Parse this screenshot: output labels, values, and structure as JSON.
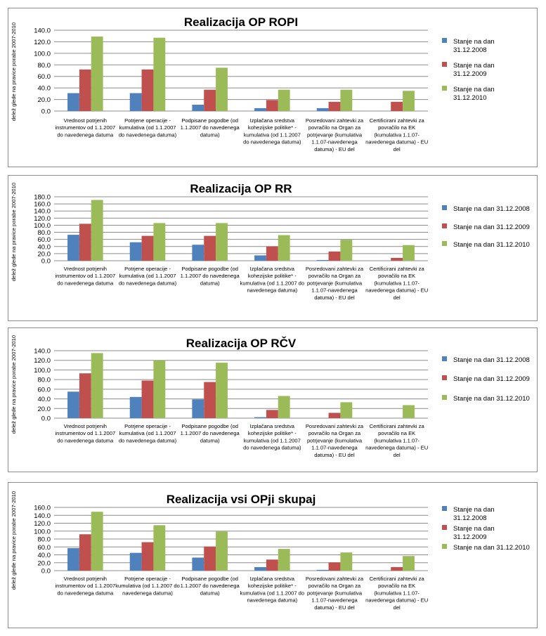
{
  "colors": {
    "series_2008": "#4f81bd",
    "series_2009": "#c0504d",
    "series_2010": "#9bbb59",
    "grid": "#8c8c8c",
    "border": "#8c8c8c"
  },
  "chart_data": [
    {
      "type": "bar",
      "title": "Realizacija OP ROPI",
      "ylabel": "delež glede na pravice porabe 2007-2010",
      "xlabel": "",
      "ylim": [
        0,
        140
      ],
      "ytick_step": 20,
      "grid": true,
      "legend_position": "right",
      "categories": [
        [
          "Vrednost potrjenih",
          "instrumentov od 1.1.2007",
          "do navedenega datuma"
        ],
        [
          "Potrjene operacije -",
          "kumulativa (od 1.1.2007",
          "do navedenega datuma)"
        ],
        [
          "Podpisane pogodbe (od",
          "1.1.2007 do navedenega",
          "datuma)"
        ],
        [
          "Izplačana sredstva",
          "kohezijske politike* -",
          "kumulativa (od 1.1.2007",
          "do navedenega datuma)"
        ],
        [
          "Posredovani zahtevki za",
          "povračilo na Organ za",
          "potrjevanje (kumulativa",
          "1.1.07-navedenega",
          "datuma) - EU del"
        ],
        [
          "Certificirani zahtevki za",
          "povračilo na EK",
          "(kumulativa 1.1.07-",
          "navedenega datuma) - EU",
          "del"
        ]
      ],
      "series": [
        {
          "name": [
            "Stanje na dan",
            "31.12.2008"
          ],
          "values": [
            31,
            31,
            11,
            5,
            5,
            0
          ]
        },
        {
          "name": [
            "Stanje na dan",
            "31.12.2009"
          ],
          "values": [
            72,
            72,
            37,
            19,
            16,
            16
          ]
        },
        {
          "name": [
            "Stanje na dan",
            "31.12.2010"
          ],
          "values": [
            129,
            127,
            75,
            37,
            37,
            35
          ]
        }
      ]
    },
    {
      "type": "bar",
      "title": "Realizacija OP RR",
      "ylabel": "delež glede na pravice porabe 2007-2010",
      "xlabel": "",
      "ylim": [
        0,
        180
      ],
      "ytick_step": 20,
      "grid": true,
      "legend_position": "right",
      "categories": [
        [
          "Vrednost potrjenih",
          "instrumentov od 1.1.2007",
          "do navedenega datuma"
        ],
        [
          "Potrjene operacije -",
          "kumulativa (od 1.1.2007",
          "do navedenega datuma)"
        ],
        [
          "Podpisane pogodbe (od",
          "1.1.2007 do navedenega",
          "datuma)"
        ],
        [
          "Izplačana sredstva",
          "kohezijske politike* -",
          "kumulativa (od 1.1.2007 do",
          "navedenega datuma)"
        ],
        [
          "Posredovani zahtevki za",
          "povračilo na Organ za",
          "potrjevanje (kumulativa",
          "1.1.07-navedenega",
          "datuma) - EU del"
        ],
        [
          "Certificirani zahtevki za",
          "povračilo na EK",
          "(kumulativa 1.1.07-",
          "navedenega datuma) - EU",
          "del"
        ]
      ],
      "series": [
        {
          "name": [
            "Stanje na dan 31.12.2008"
          ],
          "values": [
            73,
            52,
            45,
            15,
            2,
            0
          ]
        },
        {
          "name": [
            "Stanje na dan 31.12.2009"
          ],
          "values": [
            104,
            70,
            70,
            40,
            26,
            8
          ]
        },
        {
          "name": [
            "Stanje na dan 31.12.2010"
          ],
          "values": [
            171,
            106,
            106,
            72,
            59,
            44
          ]
        }
      ]
    },
    {
      "type": "bar",
      "title": "Realizacija OP RČV",
      "ylabel": "delež glede na pravice porabe 2007-2010",
      "xlabel": "",
      "ylim": [
        0,
        140
      ],
      "ytick_step": 20,
      "grid": true,
      "legend_position": "right",
      "categories": [
        [
          "Vrednost potrjenih",
          "instrumentov od 1.1.2007",
          "do navedenega datuma"
        ],
        [
          "Potrjene operacije -",
          "kumulativa (od 1.1.2007",
          "do navedenega datuma)"
        ],
        [
          "Podpisane pogodbe (od",
          "1.1.2007 do navedenega",
          "datuma)"
        ],
        [
          "Izplačana sredstva",
          "kohezijske politike* -",
          "kumulativa (od 1.1.2007",
          "do navedenega datuma)"
        ],
        [
          "Posredovani zahtevki za",
          "povračilo na Organ za",
          "potrjevanje (kumulativa",
          "1.1.07-navedenega",
          "datuma) - EU del"
        ],
        [
          "Certificirani zahtevki za",
          "povračilo na EK",
          "(kumulativa 1.1.07-",
          "navedenega datuma) - EU",
          "del"
        ]
      ],
      "series": [
        {
          "name": [
            "Stanje na dan 31.12.2008"
          ],
          "values": [
            55,
            44,
            39,
            2,
            0,
            0
          ]
        },
        {
          "name": [
            "Stanje na dan 31.12.2009"
          ],
          "values": [
            93,
            78,
            75,
            17,
            11,
            0
          ]
        },
        {
          "name": [
            "Stanje na dan 31.12.2010"
          ],
          "values": [
            135,
            120,
            115,
            46,
            33,
            27
          ]
        }
      ]
    },
    {
      "type": "bar",
      "title": "Realizacija vsi OPji skupaj",
      "ylabel": "delež glede na pravice porabe 2007-2010",
      "xlabel": "",
      "ylim": [
        0,
        160
      ],
      "ytick_step": 20,
      "grid": true,
      "legend_position": "right",
      "categories": [
        [
          "Vrednost potrjenih",
          "instrumentov od 1.1.2007",
          "do navedenega datuma"
        ],
        [
          "Potrjene operacije -",
          "kumulativa (od 1.1.2007 do",
          "navedenega datuma)"
        ],
        [
          "Podpisane pogodbe (od",
          "1.1.2007 do navedenega",
          "datuma)"
        ],
        [
          "Izplačana sredstva",
          "kohezijske politike* -",
          "kumulativa (od 1.1.2007 do",
          "navedenega datuma)"
        ],
        [
          "Posredovani zahtevki za",
          "povračilo na Organ za",
          "potrjevanje (kumulativa",
          "1.1.07-navedenega",
          "datuma) - EU del"
        ],
        [
          "Certificirani zahtevki za",
          "povračilo na EK",
          "(kumulativa 1.1.07-",
          "navedenega datuma) - EU",
          "del"
        ]
      ],
      "series": [
        {
          "name": [
            "Stanje na dan",
            "31.12.2008"
          ],
          "values": [
            57,
            45,
            33,
            9,
            2,
            0
          ]
        },
        {
          "name": [
            "Stanje na dan",
            "31.12.2009"
          ],
          "values": [
            92,
            72,
            61,
            28,
            21,
            9
          ]
        },
        {
          "name": [
            "Stanje na dan 31.12.2010"
          ],
          "values": [
            149,
            115,
            99,
            55,
            46,
            37
          ]
        }
      ]
    }
  ]
}
